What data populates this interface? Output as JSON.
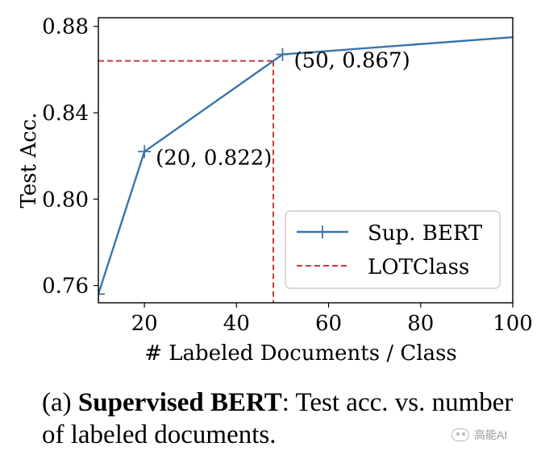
{
  "chart_data": {
    "type": "line",
    "xlabel": "# Labeled Documents / Class",
    "ylabel": "Test Acc.",
    "xlim": [
      10,
      100
    ],
    "ylim": [
      0.752,
      0.884
    ],
    "xticks": [
      20,
      40,
      60,
      80,
      100
    ],
    "xtick_labels": [
      "20",
      "40",
      "60",
      "80",
      "100"
    ],
    "yticks": [
      0.76,
      0.8,
      0.84,
      0.88
    ],
    "ytick_labels": [
      "0.76",
      "0.80",
      "0.84",
      "0.88"
    ],
    "series": [
      {
        "name": "Sup. BERT",
        "color": "#3a74aa",
        "style": "solid",
        "marker": "plus",
        "x": [
          10,
          20,
          50,
          100
        ],
        "y": [
          0.756,
          0.822,
          0.867,
          0.875
        ]
      }
    ],
    "reference_lines": [
      {
        "name": "LOTClass",
        "color": "#cc3a3a",
        "style": "dashed",
        "x": 48,
        "y": 0.864
      }
    ],
    "annotations": [
      {
        "x": 20,
        "y": 0.822,
        "text": "(20, 0.822)"
      },
      {
        "x": 50,
        "y": 0.867,
        "text": "(50, 0.867)"
      }
    ],
    "legend": {
      "position": "lower-right",
      "entries": [
        "Sup. BERT",
        "LOTClass"
      ]
    }
  },
  "caption": {
    "prefix": "(a) ",
    "bold": "Supervised BERT",
    "rest": ": Test acc. vs. number of labeled documents."
  },
  "watermark": {
    "text": "高能AI"
  }
}
